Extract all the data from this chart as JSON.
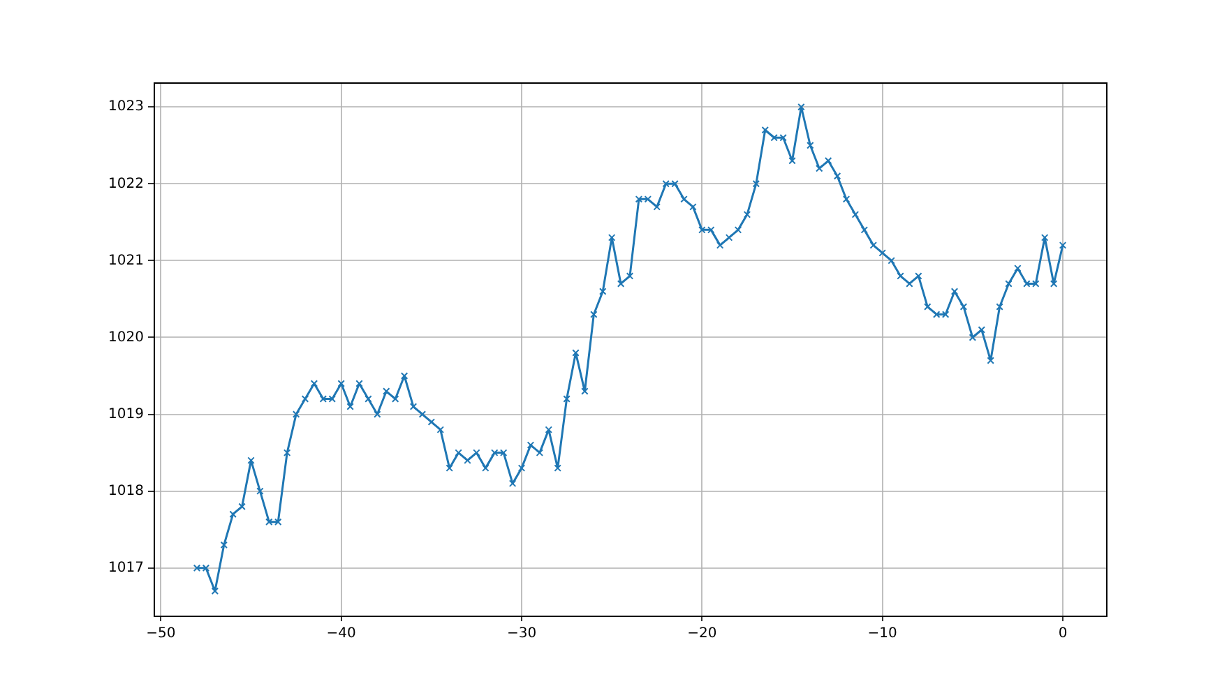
{
  "chart_data": {
    "type": "line",
    "x": [
      -48,
      -47.5,
      -47,
      -46.5,
      -46,
      -45.5,
      -45,
      -44.5,
      -44,
      -43.5,
      -43,
      -42.5,
      -42,
      -41.5,
      -41,
      -40.5,
      -40,
      -39.5,
      -39,
      -38.5,
      -38,
      -37.5,
      -37,
      -36.5,
      -36,
      -35.5,
      -35,
      -34.5,
      -34,
      -33.5,
      -33,
      -32.5,
      -32,
      -31.5,
      -31,
      -30.5,
      -30,
      -29.5,
      -29,
      -28.5,
      -28,
      -27.5,
      -27,
      -26.5,
      -26,
      -25.5,
      -25,
      -24.5,
      -24,
      -23.5,
      -23,
      -22.5,
      -22,
      -21.5,
      -21,
      -20.5,
      -20,
      -19.5,
      -19,
      -18.5,
      -18,
      -17.5,
      -17,
      -16.5,
      -16,
      -15.5,
      -15,
      -14.5,
      -14,
      -13.5,
      -13,
      -12.5,
      -12,
      -11.5,
      -11,
      -10.5,
      -10,
      -9.5,
      -9,
      -8.5,
      -8,
      -7.5,
      -7,
      -6.5,
      -6,
      -5.5,
      -5,
      -4.5,
      -4,
      -3.5,
      -3,
      -2.5,
      -2,
      -1.5,
      -1,
      -0.5,
      0
    ],
    "values": [
      1017.0,
      1017.0,
      1016.7,
      1017.3,
      1017.7,
      1017.8,
      1018.4,
      1018.0,
      1017.6,
      1017.6,
      1018.5,
      1019.0,
      1019.2,
      1019.4,
      1019.2,
      1019.2,
      1019.4,
      1019.1,
      1019.4,
      1019.2,
      1019.0,
      1019.3,
      1019.2,
      1019.5,
      1019.1,
      1019.0,
      1018.9,
      1018.8,
      1018.3,
      1018.5,
      1018.4,
      1018.5,
      1018.3,
      1018.5,
      1018.5,
      1018.1,
      1018.3,
      1018.6,
      1018.5,
      1018.8,
      1018.3,
      1019.2,
      1019.8,
      1019.3,
      1020.3,
      1020.6,
      1021.3,
      1020.7,
      1020.8,
      1021.8,
      1021.8,
      1021.7,
      1022.0,
      1022.0,
      1021.8,
      1021.7,
      1021.4,
      1021.4,
      1021.2,
      1021.3,
      1021.4,
      1021.6,
      1022.0,
      1022.7,
      1022.6,
      1022.6,
      1022.3,
      1023.0,
      1022.5,
      1022.2,
      1022.3,
      1022.1,
      1021.8,
      1021.6,
      1021.4,
      1021.2,
      1021.1,
      1021.0,
      1020.8,
      1020.7,
      1020.8,
      1020.4,
      1020.3,
      1020.3,
      1020.6,
      1020.4,
      1020.0,
      1020.1,
      1019.7,
      1020.4,
      1020.7,
      1020.9,
      1020.7,
      1020.7,
      1021.3,
      1020.7,
      1021.2
    ],
    "color": "#1f77b4",
    "xlim": [
      -50.4,
      2.4
    ],
    "ylim": [
      1016.38,
      1023.32
    ],
    "xticks": [
      {
        "value": -50,
        "label": "−50"
      },
      {
        "value": -40,
        "label": "−40"
      },
      {
        "value": -30,
        "label": "−30"
      },
      {
        "value": -20,
        "label": "−20"
      },
      {
        "value": -10,
        "label": "−10"
      },
      0
    ],
    "yticks": [
      1017,
      1018,
      1019,
      1020,
      1021,
      1022,
      1023
    ],
    "grid": true,
    "marker": "cross",
    "line_style": "solid"
  }
}
